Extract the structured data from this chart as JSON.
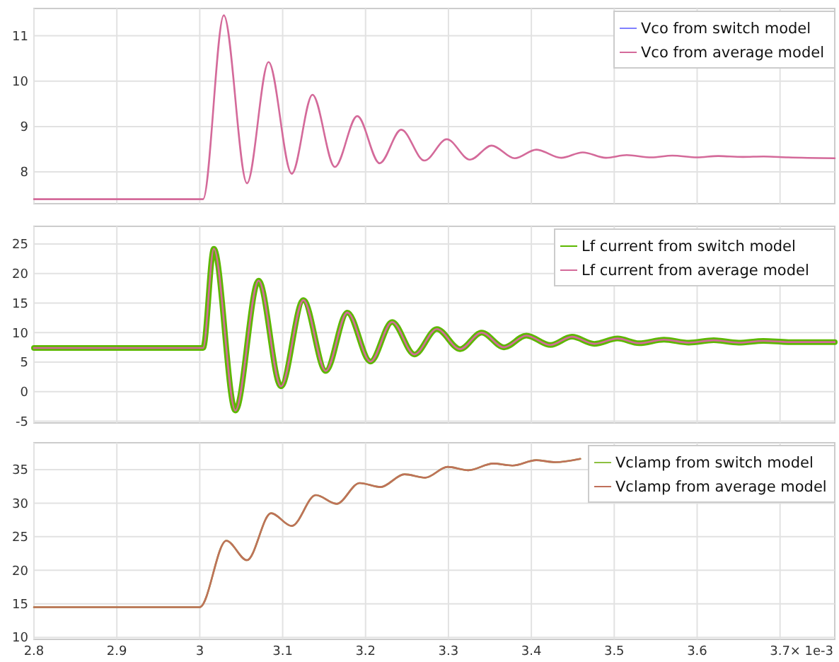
{
  "chart_data": [
    {
      "type": "line",
      "xlim": [
        2.8,
        3.766
      ],
      "xticks": [
        2.8,
        2.9,
        3.0,
        3.1,
        3.2,
        3.3,
        3.4,
        3.5,
        3.6,
        3.7
      ],
      "ylim": [
        7.3,
        11.6
      ],
      "yticks": [
        8,
        9,
        10,
        11
      ],
      "grid": true,
      "legend": "top right",
      "tick_labels": "y",
      "x": [
        2.8,
        3.0,
        3.004,
        3.029,
        3.057,
        3.083,
        3.111,
        3.136,
        3.163,
        3.19,
        3.217,
        3.243,
        3.271,
        3.298,
        3.326,
        3.352,
        3.38,
        3.406,
        3.436,
        3.462,
        3.49,
        3.515,
        3.545,
        3.57,
        3.6,
        3.625,
        3.655,
        3.68,
        3.71,
        3.766
      ],
      "series": [
        {
          "name": "Vco from switch model",
          "color": "#8080ff",
          "values": [
            null,
            null,
            null,
            null,
            null,
            null,
            null,
            null,
            null,
            null,
            null,
            null,
            null,
            null,
            null,
            null,
            null,
            null,
            null,
            null,
            null,
            null,
            null,
            null,
            null,
            null,
            null,
            null,
            null,
            null
          ]
        },
        {
          "name": "Vco from average model",
          "color": "#d46a9a",
          "values": [
            7.4,
            7.4,
            7.4,
            11.45,
            7.75,
            10.42,
            7.96,
            9.7,
            8.11,
            9.23,
            8.19,
            8.93,
            8.25,
            8.72,
            8.27,
            8.58,
            8.3,
            8.49,
            8.31,
            8.43,
            8.31,
            8.37,
            8.32,
            8.36,
            8.32,
            8.35,
            8.33,
            8.34,
            8.32,
            8.3
          ]
        }
      ]
    },
    {
      "type": "line",
      "xlim": [
        2.8,
        3.766
      ],
      "xticks": [
        2.8,
        2.9,
        3.0,
        3.1,
        3.2,
        3.3,
        3.4,
        3.5,
        3.6,
        3.7
      ],
      "ylim": [
        -5.3,
        28
      ],
      "yticks": [
        -5,
        0,
        5,
        10,
        15,
        20,
        25
      ],
      "grid": true,
      "legend": "top right",
      "tick_labels": "y",
      "x": [
        2.8,
        3.0,
        3.004,
        3.017,
        3.043,
        3.071,
        3.098,
        3.125,
        3.152,
        3.178,
        3.206,
        3.232,
        3.259,
        3.286,
        3.314,
        3.34,
        3.367,
        3.394,
        3.423,
        3.449,
        3.476,
        3.504,
        3.53,
        3.56,
        3.59,
        3.62,
        3.65,
        3.68,
        3.71,
        3.766
      ],
      "series": [
        {
          "name": "Lf current from switch model",
          "color": "#5cb800",
          "values": [
            7.4,
            7.4,
            7.4,
            24.2,
            -3.2,
            18.8,
            0.9,
            15.5,
            3.5,
            13.4,
            5.1,
            11.8,
            6.3,
            10.6,
            7.2,
            10.0,
            7.5,
            9.5,
            7.9,
            9.3,
            8.1,
            9.0,
            8.2,
            8.8,
            8.3,
            8.7,
            8.3,
            8.6,
            8.4,
            8.4
          ]
        },
        {
          "name": "Lf current from average model",
          "color": "#d46a9a",
          "values": [
            7.4,
            7.4,
            7.4,
            24.2,
            -3.2,
            18.8,
            0.9,
            15.5,
            3.5,
            13.4,
            5.1,
            11.8,
            6.3,
            10.6,
            7.2,
            10.0,
            7.5,
            9.5,
            7.9,
            9.3,
            8.1,
            9.0,
            8.2,
            8.8,
            8.3,
            8.7,
            8.3,
            8.6,
            8.4,
            8.4
          ]
        }
      ]
    },
    {
      "type": "line",
      "xlim": [
        2.8,
        3.766
      ],
      "xticks": [
        2.8,
        2.9,
        3.0,
        3.1,
        3.2,
        3.3,
        3.4,
        3.5,
        3.6,
        3.7
      ],
      "xlabel": "× 1e-3",
      "ylim": [
        9.7,
        39
      ],
      "yticks": [
        10,
        15,
        20,
        25,
        30,
        35
      ],
      "grid": true,
      "legend": "top right",
      "x": [
        2.8,
        3.0,
        3.032,
        3.057,
        3.086,
        3.111,
        3.14,
        3.165,
        3.193,
        3.218,
        3.247,
        3.272,
        3.299,
        3.324,
        3.354,
        3.377,
        3.406,
        3.429,
        3.459
      ],
      "series": [
        {
          "name": "Vclamp from switch model",
          "color": "#8cc040",
          "values": [
            14.5,
            14.5,
            24.4,
            21.5,
            28.5,
            26.6,
            31.2,
            29.9,
            33.0,
            32.4,
            34.3,
            33.8,
            35.4,
            34.9,
            35.9,
            35.6,
            36.4,
            36.1,
            36.6
          ]
        },
        {
          "name": "Vclamp from average model",
          "color": "#c0705a",
          "values": [
            14.5,
            14.5,
            24.4,
            21.5,
            28.5,
            26.6,
            31.2,
            29.9,
            33.0,
            32.4,
            34.3,
            33.8,
            35.4,
            34.9,
            35.9,
            35.6,
            36.4,
            36.1,
            36.6
          ]
        }
      ]
    }
  ]
}
